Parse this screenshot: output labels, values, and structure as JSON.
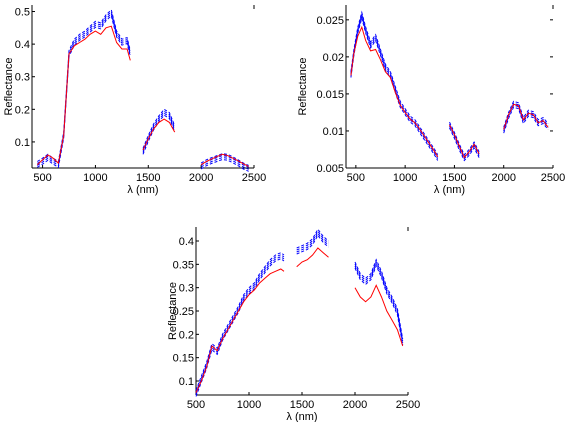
{
  "chart_data": [
    {
      "type": "line",
      "xlabel": "λ (nm)",
      "ylabel": "Reflectance",
      "xlim": [
        400,
        2500
      ],
      "ylim": [
        0.02,
        0.52
      ],
      "xticks": [
        500,
        1000,
        1500,
        2000,
        2500
      ],
      "yticks": [
        0.1,
        0.2,
        0.3,
        0.4,
        0.5
      ],
      "xtick_labels": [
        "500",
        "1000",
        "1500",
        "2000",
        "2500"
      ],
      "ytick_labels": [
        "0.1",
        "0.2",
        "0.3",
        "0.4",
        "0.5"
      ],
      "grid": false,
      "series": [
        {
          "style": "dashed",
          "color": "#0000ff",
          "x": [
            450,
            500,
            550,
            600,
            650,
            700,
            750,
            800,
            850,
            900,
            950,
            1000,
            1050,
            1100,
            1150,
            1200,
            1250,
            1300,
            1330,
            null,
            1450,
            1500,
            1550,
            1600,
            1650,
            1700,
            1750,
            null,
            2000,
            2050,
            2100,
            2150,
            2200,
            2250,
            2300,
            2350,
            2400,
            2450
          ],
          "y": [
            0.04,
            0.05,
            0.062,
            0.05,
            0.04,
            0.13,
            0.38,
            0.415,
            0.43,
            0.44,
            0.455,
            0.47,
            0.465,
            0.49,
            0.505,
            0.44,
            0.415,
            0.42,
            0.38,
            null,
            0.08,
            0.12,
            0.155,
            0.18,
            0.2,
            0.19,
            0.15,
            null,
            0.035,
            0.045,
            0.052,
            0.058,
            0.064,
            0.062,
            0.054,
            0.045,
            0.035,
            0.028
          ]
        },
        {
          "style": "solid",
          "color": "#ff0000",
          "x": [
            450,
            500,
            550,
            600,
            650,
            700,
            750,
            800,
            850,
            900,
            950,
            1000,
            1050,
            1100,
            1150,
            1200,
            1250,
            1300,
            1330,
            null,
            1450,
            1500,
            1550,
            1600,
            1650,
            1700,
            1750,
            null,
            2000,
            2050,
            2100,
            2150,
            2200,
            2250,
            2300,
            2350,
            2400,
            2450
          ],
          "y": [
            0.03,
            0.045,
            0.06,
            0.05,
            0.035,
            0.12,
            0.37,
            0.395,
            0.405,
            0.415,
            0.43,
            0.44,
            0.43,
            0.45,
            0.455,
            0.405,
            0.385,
            0.385,
            0.35,
            null,
            0.075,
            0.11,
            0.14,
            0.16,
            0.17,
            0.16,
            0.13,
            null,
            0.03,
            0.04,
            0.048,
            0.055,
            0.062,
            0.058,
            0.05,
            0.042,
            0.033,
            0.025
          ]
        }
      ]
    },
    {
      "type": "line",
      "xlabel": "λ (nm)",
      "ylabel": "Reflectance",
      "xlim": [
        400,
        2500
      ],
      "ylim": [
        0.005,
        0.027
      ],
      "xticks": [
        500,
        1000,
        1500,
        2000,
        2500
      ],
      "yticks": [
        0.005,
        0.01,
        0.015,
        0.02,
        0.025
      ],
      "xtick_labels": [
        "500",
        "1000",
        "1500",
        "2000",
        "2500"
      ],
      "ytick_labels": [
        "0.005",
        "0.01",
        "0.015",
        "0.02",
        "0.025"
      ],
      "grid": false,
      "series": [
        {
          "style": "dashed",
          "color": "#0000ff",
          "x": [
            450,
            480,
            520,
            560,
            600,
            650,
            700,
            750,
            800,
            850,
            900,
            950,
            1000,
            1050,
            1100,
            1150,
            1200,
            1250,
            1300,
            1330,
            null,
            1450,
            1500,
            1550,
            1600,
            1650,
            1700,
            1750,
            null,
            2000,
            2050,
            2100,
            2150,
            2200,
            2250,
            2300,
            2350,
            2400,
            2450
          ],
          "y": [
            0.018,
            0.021,
            0.024,
            0.026,
            0.024,
            0.022,
            0.023,
            0.021,
            0.019,
            0.018,
            0.016,
            0.014,
            0.013,
            0.012,
            0.0115,
            0.0105,
            0.0095,
            0.0085,
            0.0075,
            0.0068,
            null,
            0.0112,
            0.0098,
            0.0082,
            0.0068,
            0.0075,
            0.0085,
            0.0072,
            null,
            0.0105,
            0.0125,
            0.014,
            0.0138,
            0.0118,
            0.0128,
            0.0126,
            0.0115,
            0.0118,
            0.011
          ]
        },
        {
          "style": "solid",
          "color": "#ff0000",
          "x": [
            450,
            480,
            520,
            560,
            600,
            650,
            700,
            750,
            800,
            850,
            900,
            950,
            1000,
            1050,
            1100,
            1150,
            1200,
            1250,
            1300,
            1330,
            null,
            1450,
            1500,
            1550,
            1600,
            1650,
            1700,
            1750,
            null,
            2000,
            2050,
            2100,
            2150,
            2200,
            2250,
            2300,
            2350,
            2400,
            2450
          ],
          "y": [
            0.0175,
            0.0205,
            0.0228,
            0.024,
            0.0222,
            0.0208,
            0.021,
            0.0196,
            0.018,
            0.0172,
            0.0152,
            0.0135,
            0.0125,
            0.0116,
            0.0111,
            0.0102,
            0.0092,
            0.0082,
            0.0072,
            0.0065,
            null,
            0.0108,
            0.0095,
            0.0079,
            0.0064,
            0.0072,
            0.0082,
            0.0069,
            null,
            0.0102,
            0.0122,
            0.0136,
            0.0134,
            0.0115,
            0.0124,
            0.0122,
            0.0111,
            0.0114,
            0.0105
          ]
        }
      ]
    },
    {
      "type": "line",
      "xlabel": "λ (nm)",
      "ylabel": "Reflectance",
      "xlim": [
        500,
        2500
      ],
      "ylim": [
        0.07,
        0.43
      ],
      "xticks": [
        500,
        1000,
        1500,
        2000,
        2500
      ],
      "yticks": [
        0.1,
        0.15,
        0.2,
        0.25,
        0.3,
        0.35,
        0.4
      ],
      "xtick_labels": [
        "500",
        "1000",
        "1500",
        "2000",
        "2500"
      ],
      "ytick_labels": [
        "0.1",
        "0.15",
        "0.2",
        "0.25",
        "0.3",
        "0.35",
        "0.4"
      ],
      "grid": false,
      "series": [
        {
          "style": "dashed",
          "color": "#0000ff",
          "x": [
            500,
            550,
            600,
            650,
            700,
            750,
            800,
            850,
            900,
            950,
            1000,
            1050,
            1100,
            1150,
            1200,
            1250,
            1300,
            1330,
            null,
            1450,
            1500,
            1550,
            1600,
            1650,
            1700,
            1750,
            null,
            2000,
            2050,
            2100,
            2150,
            2200,
            2250,
            2300,
            2350,
            2400,
            2450
          ],
          "y": [
            0.08,
            0.11,
            0.14,
            0.18,
            0.17,
            0.2,
            0.22,
            0.24,
            0.26,
            0.285,
            0.3,
            0.31,
            0.33,
            0.345,
            0.36,
            0.37,
            0.375,
            0.37,
            null,
            0.385,
            0.39,
            0.395,
            0.405,
            0.425,
            0.41,
            0.4,
            null,
            0.355,
            0.33,
            0.32,
            0.33,
            0.36,
            0.335,
            0.3,
            0.28,
            0.255,
            0.19
          ]
        },
        {
          "style": "solid",
          "color": "#ff0000",
          "x": [
            500,
            550,
            600,
            650,
            700,
            750,
            800,
            850,
            900,
            950,
            1000,
            1050,
            1100,
            1150,
            1200,
            1250,
            1300,
            1330,
            null,
            1450,
            1500,
            1550,
            1600,
            1650,
            1700,
            1750,
            null,
            2000,
            2050,
            2100,
            2150,
            2200,
            2250,
            2300,
            2350,
            2400,
            2450
          ],
          "y": [
            0.075,
            0.1,
            0.13,
            0.175,
            0.165,
            0.19,
            0.21,
            0.23,
            0.25,
            0.27,
            0.285,
            0.295,
            0.31,
            0.32,
            0.33,
            0.335,
            0.34,
            0.335,
            null,
            0.345,
            0.355,
            0.36,
            0.37,
            0.385,
            0.375,
            0.365,
            null,
            0.3,
            0.28,
            0.27,
            0.28,
            0.305,
            0.28,
            0.25,
            0.23,
            0.21,
            0.175
          ]
        }
      ]
    }
  ]
}
